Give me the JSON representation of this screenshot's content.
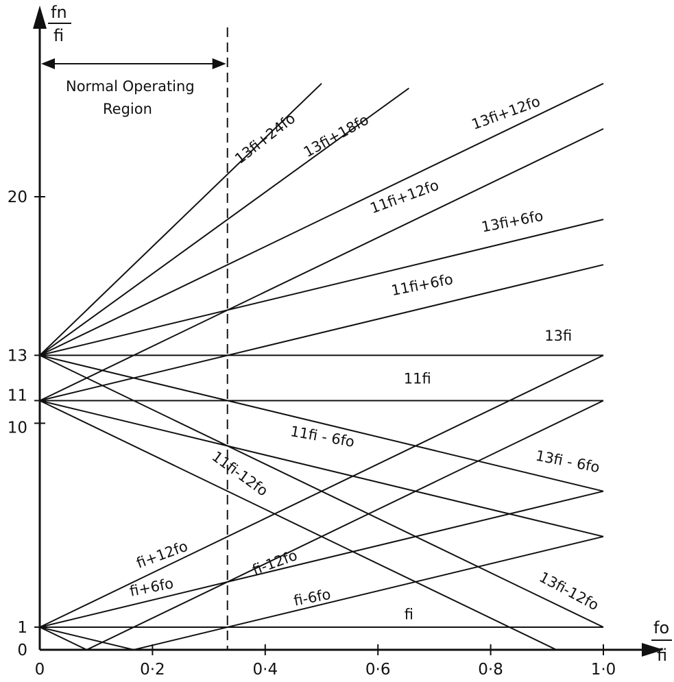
{
  "chart_data": {
    "type": "line",
    "title": "",
    "xlabel": {
      "num": "fo",
      "den": "fi"
    },
    "ylabel": {
      "num": "fn",
      "den": "fi"
    },
    "xlim": [
      0,
      1.0
    ],
    "ylim": [
      0,
      26
    ],
    "grid": false,
    "x_ticks": [
      {
        "value": 0,
        "label": "0"
      },
      {
        "value": 0.2,
        "label": "0·2"
      },
      {
        "value": 0.4,
        "label": "0·4"
      },
      {
        "value": 0.6,
        "label": "0·6"
      },
      {
        "value": 0.8,
        "label": "0·8"
      },
      {
        "value": 1.0,
        "label": "1·0"
      }
    ],
    "y_ticks": [
      {
        "value": 0,
        "label": "0"
      },
      {
        "value": 1,
        "label": "1"
      },
      {
        "value": 10,
        "label": "10"
      },
      {
        "value": 11,
        "label": "11"
      },
      {
        "value": 13,
        "label": "13"
      },
      {
        "value": 20,
        "label": "20"
      }
    ],
    "region": {
      "label_line1": "Normal Operating",
      "label_line2": "Region",
      "x_boundary": 0.333
    },
    "series": [
      {
        "name": "13fi+24fo",
        "base": 13,
        "k": 24,
        "x_end": 0.5,
        "label_at": [
          0.405,
          22.4
        ],
        "label_angle": -38
      },
      {
        "name": "13fi+18fo",
        "base": 13,
        "k": 18,
        "x_end": 0.655,
        "label_at": [
          0.53,
          22.5
        ],
        "label_angle": -29
      },
      {
        "name": "13fi+12fo",
        "base": 13,
        "k": 12,
        "x_end": 1.0,
        "label_at": [
          0.83,
          23.5
        ],
        "label_angle": -20
      },
      {
        "name": "11fi+12fo",
        "base": 11,
        "k": 12,
        "x_end": 1.0,
        "label_at": [
          0.65,
          19.8
        ],
        "label_angle": -20
      },
      {
        "name": "13fi+6fo",
        "base": 13,
        "k": 6,
        "x_end": 1.0,
        "label_at": [
          0.84,
          18.7
        ],
        "label_angle": -11
      },
      {
        "name": "11fi+6fo",
        "base": 11,
        "k": 6,
        "x_end": 1.0,
        "label_at": [
          0.68,
          15.9
        ],
        "label_angle": -11
      },
      {
        "name": "13fi",
        "base": 13,
        "k": 0,
        "x_end": 1.0,
        "label_at": [
          0.92,
          13.65
        ],
        "label_angle": 0
      },
      {
        "name": "11fi",
        "base": 11,
        "k": 0,
        "x_end": 1.0,
        "label_at": [
          0.67,
          11.75
        ],
        "label_angle": 0
      },
      {
        "name": "11fi - 6fo",
        "base": 11,
        "k": -6,
        "x_end": 1.0,
        "label_at": [
          0.5,
          9.2
        ],
        "label_angle": 10
      },
      {
        "name": "13fi - 6fo",
        "base": 13,
        "k": -6,
        "x_end": 1.0,
        "label_at": [
          0.935,
          8.1
        ],
        "label_angle": 11
      },
      {
        "name": "11fi-12fo",
        "base": 11,
        "k": -12,
        "x_end": 0.917,
        "label_at": [
          0.35,
          7.6
        ],
        "label_angle": 36
      },
      {
        "name": "13fi-12fo",
        "base": 13,
        "k": -12,
        "x_end": 1.0,
        "label_at": [
          0.935,
          2.4
        ],
        "label_angle": 28
      },
      {
        "name": "fi+12fo",
        "base": 1,
        "k": 12,
        "x_end": 1.0,
        "label_at": [
          0.22,
          4.0
        ],
        "label_angle": -20
      },
      {
        "name": "fi+6fo",
        "base": 1,
        "k": 6,
        "x_end": 1.0,
        "label_at": [
          0.2,
          2.55
        ],
        "label_angle": -11
      },
      {
        "name": "fi-12fo",
        "base": 1,
        "k": -12,
        "x_end": 1.0,
        "label_at": [
          0.42,
          3.65
        ],
        "label_angle": -20
      },
      {
        "name": "fi-6fo",
        "base": 1,
        "k": -6,
        "x_end": 1.0,
        "label_at": [
          0.485,
          2.1
        ],
        "label_angle": -11
      },
      {
        "name": "fi",
        "base": 1,
        "k": 0,
        "x_end": 1.0,
        "label_at": [
          0.655,
          1.35
        ],
        "label_angle": 0
      }
    ]
  }
}
